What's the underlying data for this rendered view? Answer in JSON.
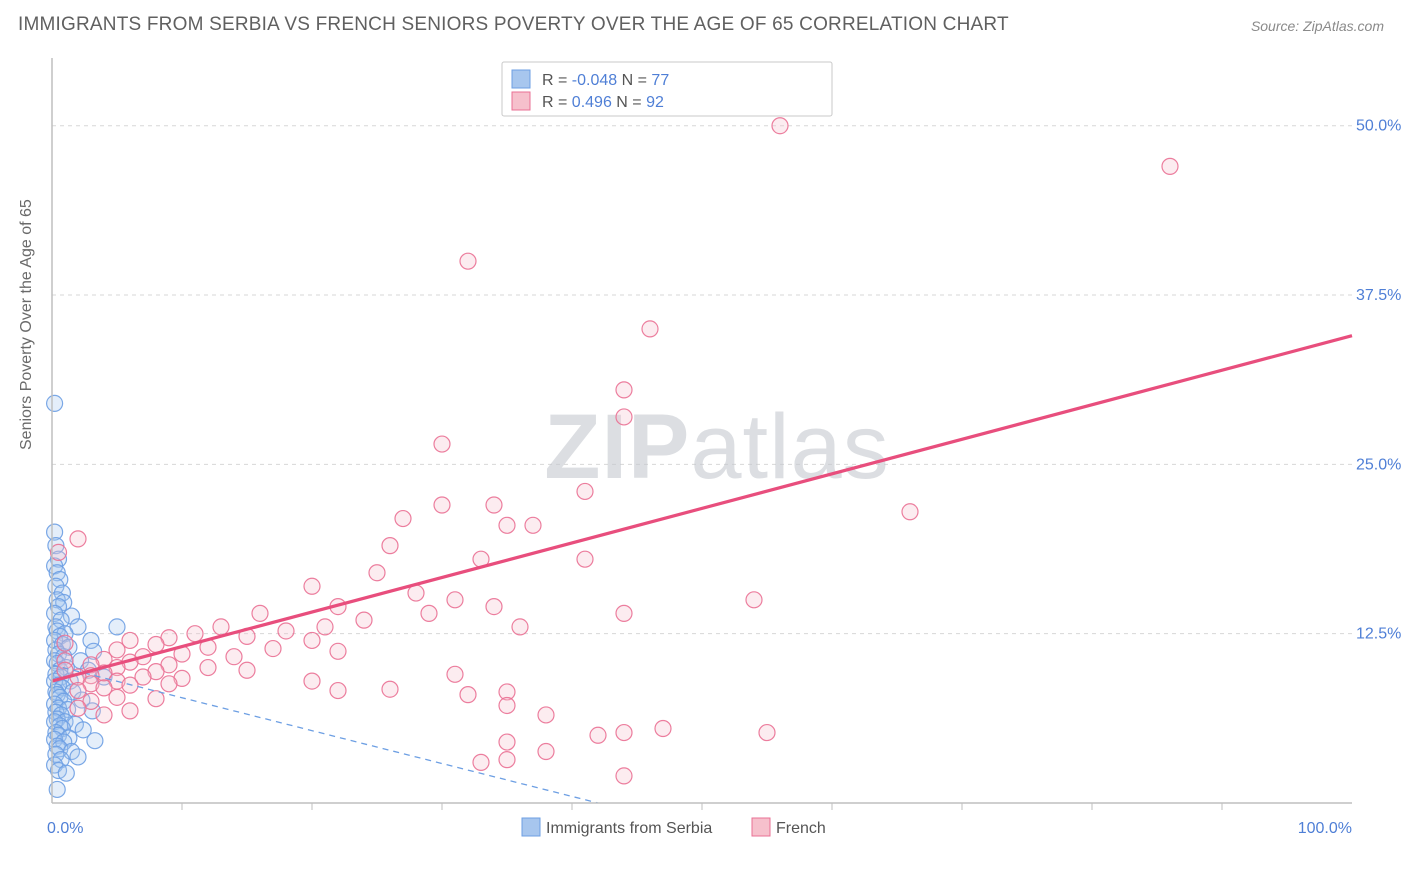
{
  "title": "IMMIGRANTS FROM SERBIA VS FRENCH SENIORS POVERTY OVER THE AGE OF 65 CORRELATION CHART",
  "source": "Source: ZipAtlas.com",
  "ylabel": "Seniors Poverty Over the Age of 65",
  "watermark_bold": "ZIP",
  "watermark_light": "atlas",
  "chart": {
    "type": "scatter",
    "x_min": 0,
    "x_max": 100,
    "y_min": 0,
    "y_max": 55,
    "x_tick_step": 10,
    "y_grid": [
      12.5,
      25.0,
      37.5,
      50.0
    ],
    "y_grid_labels": [
      "12.5%",
      "25.0%",
      "37.5%",
      "50.0%"
    ],
    "x_origin_label": "0.0%",
    "x_max_label": "100.0%",
    "plot_bg": "#ffffff",
    "grid_color": "#d7d7d7",
    "axis_color": "#bfbfbf",
    "label_color": "#4f7fd6",
    "text_color": "#6a6a6a",
    "marker_radius": 8,
    "series": [
      {
        "name": "Immigrants from Serbia",
        "color_fill": "#a7c6ee",
        "color_stroke": "#6d9fe3",
        "R": "-0.048",
        "N": "77",
        "trend": {
          "x1": 0,
          "y1": 10.2,
          "x2": 42,
          "y2": 0.0,
          "color": "#6d9fe3"
        },
        "points": [
          [
            0.2,
            29.5
          ],
          [
            0.2,
            20.0
          ],
          [
            0.3,
            19.0
          ],
          [
            0.5,
            18.0
          ],
          [
            0.2,
            17.5
          ],
          [
            0.4,
            17.0
          ],
          [
            0.6,
            16.5
          ],
          [
            0.3,
            16.0
          ],
          [
            0.8,
            15.5
          ],
          [
            0.4,
            15.0
          ],
          [
            0.9,
            14.8
          ],
          [
            0.5,
            14.5
          ],
          [
            0.2,
            14.0
          ],
          [
            1.5,
            13.8
          ],
          [
            0.7,
            13.5
          ],
          [
            0.3,
            13.0
          ],
          [
            2.0,
            13.0
          ],
          [
            5.0,
            13.0
          ],
          [
            0.4,
            12.7
          ],
          [
            1.0,
            12.5
          ],
          [
            0.6,
            12.3
          ],
          [
            0.2,
            12.0
          ],
          [
            3.0,
            12.0
          ],
          [
            0.8,
            11.7
          ],
          [
            1.3,
            11.5
          ],
          [
            0.3,
            11.3
          ],
          [
            0.5,
            11.0
          ],
          [
            3.2,
            11.2
          ],
          [
            0.9,
            10.8
          ],
          [
            0.2,
            10.5
          ],
          [
            2.2,
            10.5
          ],
          [
            0.4,
            10.3
          ],
          [
            1.1,
            10.0
          ],
          [
            0.6,
            9.8
          ],
          [
            0.3,
            9.5
          ],
          [
            2.8,
            9.8
          ],
          [
            0.7,
            9.3
          ],
          [
            1.4,
            9.0
          ],
          [
            0.2,
            9.0
          ],
          [
            0.5,
            8.7
          ],
          [
            4.0,
            9.3
          ],
          [
            0.8,
            8.5
          ],
          [
            0.3,
            8.2
          ],
          [
            1.6,
            8.2
          ],
          [
            0.4,
            8.0
          ],
          [
            0.6,
            7.8
          ],
          [
            0.9,
            7.5
          ],
          [
            0.2,
            7.3
          ],
          [
            2.3,
            7.6
          ],
          [
            0.5,
            7.0
          ],
          [
            1.2,
            6.9
          ],
          [
            0.3,
            6.7
          ],
          [
            0.7,
            6.5
          ],
          [
            3.1,
            6.8
          ],
          [
            0.4,
            6.2
          ],
          [
            1.0,
            6.0
          ],
          [
            0.2,
            6.0
          ],
          [
            0.6,
            5.7
          ],
          [
            1.8,
            5.8
          ],
          [
            0.8,
            5.5
          ],
          [
            0.3,
            5.2
          ],
          [
            2.4,
            5.4
          ],
          [
            0.5,
            5.0
          ],
          [
            1.3,
            4.8
          ],
          [
            0.2,
            4.7
          ],
          [
            0.9,
            4.5
          ],
          [
            0.4,
            4.2
          ],
          [
            3.3,
            4.6
          ],
          [
            0.6,
            4.0
          ],
          [
            1.5,
            3.8
          ],
          [
            0.3,
            3.6
          ],
          [
            0.7,
            3.2
          ],
          [
            2.0,
            3.4
          ],
          [
            0.2,
            2.8
          ],
          [
            0.5,
            2.4
          ],
          [
            1.1,
            2.2
          ],
          [
            0.4,
            1.0
          ]
        ]
      },
      {
        "name": "French",
        "color_fill": "#f6c0cc",
        "color_stroke": "#ea7094",
        "R": "0.496",
        "N": "92",
        "trend": {
          "x1": 0,
          "y1": 9.0,
          "x2": 100,
          "y2": 34.5,
          "color": "#e84e7d"
        },
        "points": [
          [
            56,
            50.0
          ],
          [
            86,
            47.0
          ],
          [
            32,
            40.0
          ],
          [
            46,
            35.0
          ],
          [
            44,
            28.5
          ],
          [
            44,
            30.5
          ],
          [
            30,
            26.5
          ],
          [
            41,
            23.0
          ],
          [
            30,
            22.0
          ],
          [
            34,
            22.0
          ],
          [
            27,
            21.0
          ],
          [
            35,
            20.5
          ],
          [
            37,
            20.5
          ],
          [
            66,
            21.5
          ],
          [
            26,
            19.0
          ],
          [
            33,
            18.0
          ],
          [
            41,
            18.0
          ],
          [
            25,
            17.0
          ],
          [
            20,
            16.0
          ],
          [
            28,
            15.5
          ],
          [
            31,
            15.0
          ],
          [
            22,
            14.5
          ],
          [
            34,
            14.5
          ],
          [
            54,
            15.0
          ],
          [
            16,
            14.0
          ],
          [
            24,
            13.5
          ],
          [
            21,
            13.0
          ],
          [
            29,
            14.0
          ],
          [
            44,
            14.0
          ],
          [
            36,
            13.0
          ],
          [
            13,
            13.0
          ],
          [
            18,
            12.7
          ],
          [
            11,
            12.5
          ],
          [
            15,
            12.3
          ],
          [
            9,
            12.2
          ],
          [
            20,
            12.0
          ],
          [
            6,
            12.0
          ],
          [
            8,
            11.7
          ],
          [
            12,
            11.5
          ],
          [
            17,
            11.4
          ],
          [
            5,
            11.3
          ],
          [
            10,
            11.0
          ],
          [
            7,
            10.8
          ],
          [
            14,
            10.8
          ],
          [
            4,
            10.6
          ],
          [
            22,
            11.2
          ],
          [
            6,
            10.4
          ],
          [
            9,
            10.2
          ],
          [
            3,
            10.2
          ],
          [
            12,
            10.0
          ],
          [
            5,
            10.0
          ],
          [
            8,
            9.7
          ],
          [
            4,
            9.6
          ],
          [
            15,
            9.8
          ],
          [
            3,
            9.4
          ],
          [
            7,
            9.3
          ],
          [
            2,
            9.3
          ],
          [
            10,
            9.2
          ],
          [
            5,
            9.0
          ],
          [
            2,
            19.5
          ],
          [
            0.5,
            18.5
          ],
          [
            1,
            11.8
          ],
          [
            1,
            10.5
          ],
          [
            1,
            9.8
          ],
          [
            20,
            9.0
          ],
          [
            31,
            9.5
          ],
          [
            3,
            8.8
          ],
          [
            6,
            8.7
          ],
          [
            9,
            8.8
          ],
          [
            4,
            8.5
          ],
          [
            2,
            8.3
          ],
          [
            22,
            8.3
          ],
          [
            26,
            8.4
          ],
          [
            32,
            8.0
          ],
          [
            35,
            8.2
          ],
          [
            5,
            7.8
          ],
          [
            8,
            7.7
          ],
          [
            3,
            7.5
          ],
          [
            35,
            7.2
          ],
          [
            38,
            6.5
          ],
          [
            2,
            7.0
          ],
          [
            6,
            6.8
          ],
          [
            4,
            6.5
          ],
          [
            42,
            5.0
          ],
          [
            44,
            5.2
          ],
          [
            47,
            5.5
          ],
          [
            55,
            5.2
          ],
          [
            33,
            3.0
          ],
          [
            35,
            3.2
          ],
          [
            44,
            2.0
          ],
          [
            35,
            4.5
          ],
          [
            38,
            3.8
          ]
        ]
      }
    ]
  },
  "bottom_legend": {
    "item1": "Immigrants from Serbia",
    "item2": "French"
  }
}
